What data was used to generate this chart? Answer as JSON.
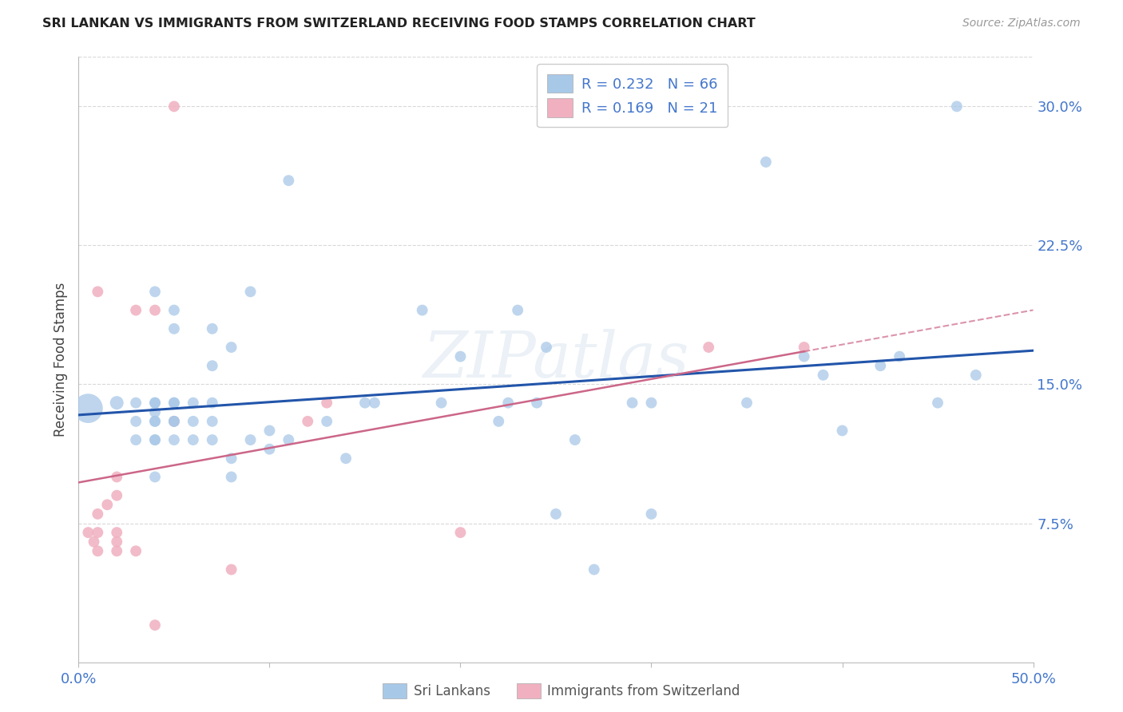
{
  "title": "SRI LANKAN VS IMMIGRANTS FROM SWITZERLAND RECEIVING FOOD STAMPS CORRELATION CHART",
  "source": "Source: ZipAtlas.com",
  "ylabel": "Receiving Food Stamps",
  "xlim": [
    0,
    0.5
  ],
  "ylim": [
    0,
    0.3267
  ],
  "yticks_right": [
    0.075,
    0.15,
    0.225,
    0.3
  ],
  "ytick_right_labels": [
    "7.5%",
    "15.0%",
    "22.5%",
    "30.0%"
  ],
  "grid_color": "#d8d8d8",
  "background_color": "#ffffff",
  "blue_color": "#a8c8e8",
  "blue_line_color": "#2255aa",
  "pink_color": "#f0b0c0",
  "pink_line_color": "#cc6688",
  "legend_text_color": "#4477cc",
  "tick_color": "#4477cc",
  "label1": "Sri Lankans",
  "label2": "Immigrants from Switzerland",
  "watermark": "ZIPatlas",
  "blue_x": [
    0.005,
    0.02,
    0.03,
    0.03,
    0.03,
    0.04,
    0.04,
    0.04,
    0.04,
    0.04,
    0.04,
    0.04,
    0.04,
    0.04,
    0.05,
    0.05,
    0.05,
    0.05,
    0.05,
    0.05,
    0.05,
    0.06,
    0.06,
    0.06,
    0.07,
    0.07,
    0.07,
    0.07,
    0.07,
    0.08,
    0.08,
    0.08,
    0.09,
    0.09,
    0.1,
    0.1,
    0.11,
    0.11,
    0.13,
    0.14,
    0.15,
    0.155,
    0.18,
    0.19,
    0.2,
    0.22,
    0.225,
    0.23,
    0.24,
    0.245,
    0.25,
    0.26,
    0.27,
    0.29,
    0.3,
    0.3,
    0.35,
    0.36,
    0.38,
    0.39,
    0.4,
    0.42,
    0.43,
    0.45,
    0.46,
    0.47
  ],
  "blue_y": [
    0.137,
    0.14,
    0.12,
    0.13,
    0.14,
    0.1,
    0.12,
    0.12,
    0.13,
    0.13,
    0.135,
    0.14,
    0.14,
    0.2,
    0.12,
    0.13,
    0.13,
    0.14,
    0.14,
    0.18,
    0.19,
    0.12,
    0.13,
    0.14,
    0.12,
    0.13,
    0.14,
    0.16,
    0.18,
    0.1,
    0.11,
    0.17,
    0.12,
    0.2,
    0.115,
    0.125,
    0.12,
    0.26,
    0.13,
    0.11,
    0.14,
    0.14,
    0.19,
    0.14,
    0.165,
    0.13,
    0.14,
    0.19,
    0.14,
    0.17,
    0.08,
    0.12,
    0.05,
    0.14,
    0.08,
    0.14,
    0.14,
    0.27,
    0.165,
    0.155,
    0.125,
    0.16,
    0.165,
    0.14,
    0.3,
    0.155
  ],
  "blue_sizes": [
    700,
    150,
    100,
    100,
    100,
    100,
    100,
    100,
    100,
    100,
    100,
    100,
    100,
    100,
    100,
    100,
    100,
    100,
    100,
    100,
    100,
    100,
    100,
    100,
    100,
    100,
    100,
    100,
    100,
    100,
    100,
    100,
    100,
    100,
    100,
    100,
    100,
    100,
    100,
    100,
    100,
    100,
    100,
    100,
    100,
    100,
    100,
    100,
    100,
    100,
    100,
    100,
    100,
    100,
    100,
    100,
    100,
    100,
    100,
    100,
    100,
    100,
    100,
    100,
    100,
    100
  ],
  "pink_x": [
    0.005,
    0.008,
    0.01,
    0.01,
    0.01,
    0.01,
    0.015,
    0.02,
    0.02,
    0.02,
    0.02,
    0.02,
    0.03,
    0.03,
    0.04,
    0.04,
    0.05,
    0.05,
    0.08,
    0.12,
    0.13,
    0.2,
    0.33,
    0.38
  ],
  "pink_y": [
    0.07,
    0.065,
    0.06,
    0.07,
    0.08,
    0.2,
    0.085,
    0.06,
    0.065,
    0.07,
    0.09,
    0.1,
    0.06,
    0.19,
    0.02,
    0.19,
    0.13,
    0.3,
    0.05,
    0.13,
    0.14,
    0.07,
    0.17,
    0.17
  ],
  "pink_sizes": [
    100,
    100,
    100,
    100,
    100,
    100,
    100,
    100,
    100,
    100,
    100,
    100,
    100,
    100,
    100,
    100,
    100,
    100,
    100,
    100,
    100,
    100,
    100,
    100
  ]
}
